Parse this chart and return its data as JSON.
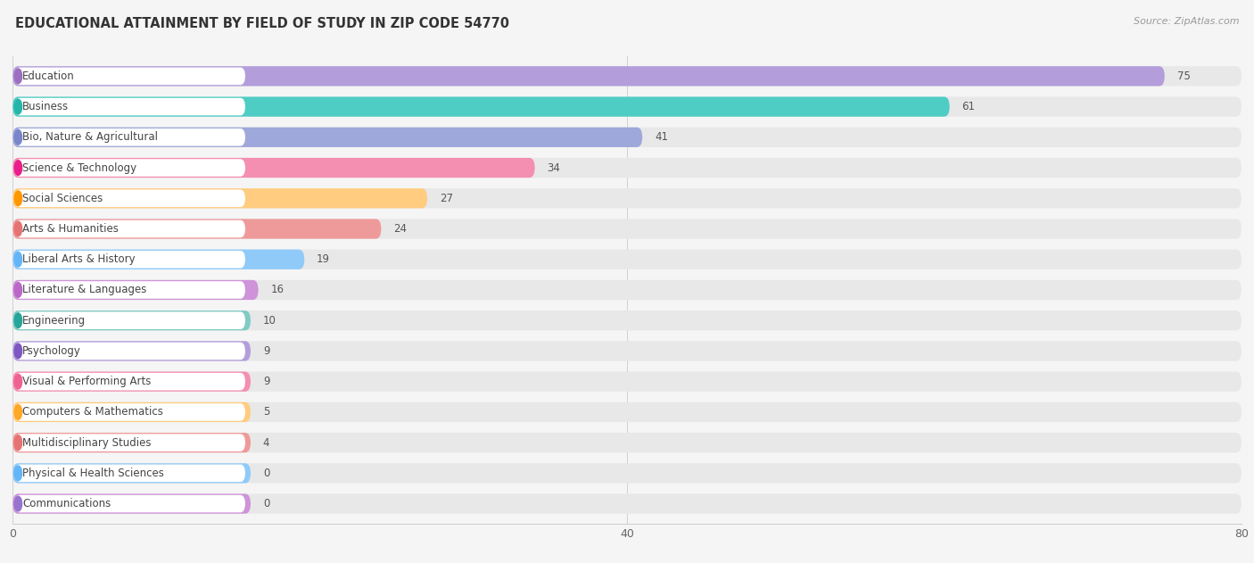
{
  "title": "EDUCATIONAL ATTAINMENT BY FIELD OF STUDY IN ZIP CODE 54770",
  "source": "Source: ZipAtlas.com",
  "categories": [
    "Education",
    "Business",
    "Bio, Nature & Agricultural",
    "Science & Technology",
    "Social Sciences",
    "Arts & Humanities",
    "Liberal Arts & History",
    "Literature & Languages",
    "Engineering",
    "Psychology",
    "Visual & Performing Arts",
    "Computers & Mathematics",
    "Multidisciplinary Studies",
    "Physical & Health Sciences",
    "Communications"
  ],
  "values": [
    75,
    61,
    41,
    34,
    27,
    24,
    19,
    16,
    10,
    9,
    9,
    5,
    4,
    0,
    0
  ],
  "bar_colors": [
    "#b39ddb",
    "#4ecdc4",
    "#9fa8da",
    "#f48fb1",
    "#ffcc80",
    "#ef9a9a",
    "#90caf9",
    "#ce93d8",
    "#80cbc4",
    "#b39ddb",
    "#f48fb1",
    "#ffcc80",
    "#ef9a9a",
    "#90caf9",
    "#ce93d8"
  ],
  "label_circle_colors": [
    "#9c6fc0",
    "#26b5a8",
    "#7986cb",
    "#e91e8c",
    "#ff9800",
    "#e57373",
    "#64b5f6",
    "#ba68c8",
    "#26a69a",
    "#7e57c2",
    "#f06292",
    "#ffa726",
    "#e57373",
    "#64b5f6",
    "#9575cd"
  ],
  "xlim": [
    0,
    80
  ],
  "xticks": [
    0,
    40,
    80
  ],
  "background_color": "#f5f5f5",
  "bar_background_color": "#e8e8e8",
  "title_fontsize": 10.5,
  "label_fontsize": 9
}
